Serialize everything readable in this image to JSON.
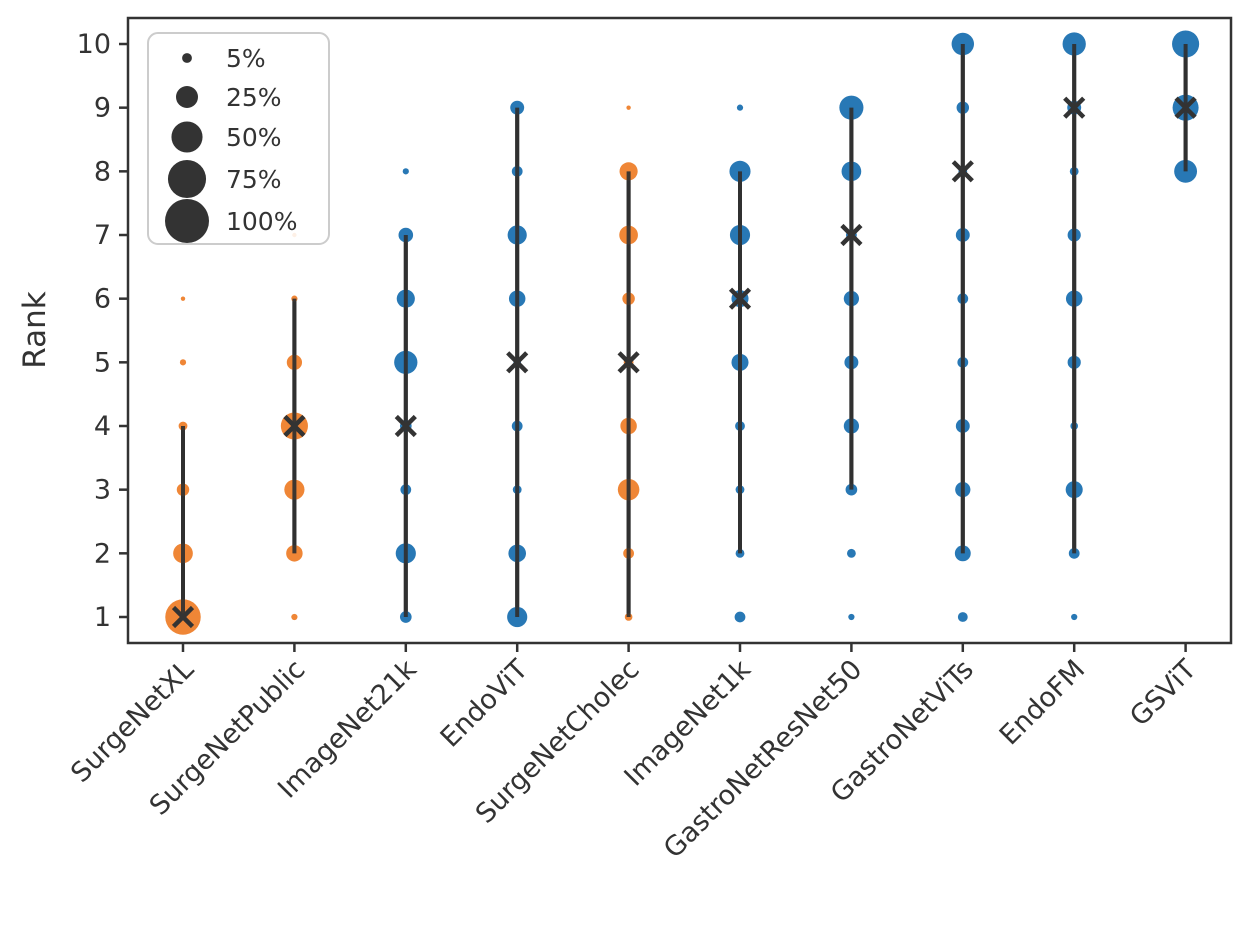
{
  "chart_data": {
    "type": "scatter",
    "title": "",
    "xlabel": "",
    "ylabel": "Rank",
    "ylim": [
      1,
      10
    ],
    "yticks": [
      1,
      2,
      3,
      4,
      5,
      6,
      7,
      8,
      9,
      10
    ],
    "grid": false,
    "legend": {
      "position": "upper left",
      "entries": [
        {
          "label": "5%",
          "percent": 5
        },
        {
          "label": "25%",
          "percent": 25
        },
        {
          "label": "50%",
          "percent": 50
        },
        {
          "label": "75%",
          "percent": 75
        },
        {
          "label": "100%",
          "percent": 100
        }
      ]
    },
    "encoding_note": "dot area = percentage of experiments achieving that rank; X = median rank; vertical line = rank range",
    "colors": {
      "surgenet_family": "#ef8636",
      "baseline": "#2878b5",
      "marker": "#333333",
      "line": "#303030"
    },
    "categories": [
      "SurgeNetXL",
      "SurgeNetPublic",
      "ImageNet21k",
      "EndoViT",
      "SurgeNetCholec",
      "ImageNet1k",
      "GastroNetResNet50",
      "GastroNetViTs",
      "EndoFM",
      "GSViT"
    ],
    "series": [
      {
        "name": "SurgeNetXL",
        "color": "#ef8636",
        "median_rank": 1,
        "line_range": [
          1,
          4
        ],
        "rank_percents": {
          "1": 65,
          "2": 20,
          "3": 8,
          "4": 4,
          "5": 2,
          "6": 1
        }
      },
      {
        "name": "SurgeNetPublic",
        "color": "#ef8636",
        "median_rank": 4,
        "line_range": [
          2,
          6
        ],
        "rank_percents": {
          "1": 2,
          "2": 14,
          "3": 21,
          "4": 38,
          "5": 12,
          "6": 2,
          "7": 1
        }
      },
      {
        "name": "ImageNet21k",
        "color": "#2878b5",
        "median_rank": 4,
        "line_range": [
          1,
          7
        ],
        "rank_percents": {
          "1": 7,
          "2": 21,
          "3": 6,
          "4": 7,
          "5": 28,
          "6": 17,
          "7": 11,
          "8": 2
        }
      },
      {
        "name": "EndoViT",
        "color": "#2878b5",
        "median_rank": 5,
        "line_range": [
          1,
          9
        ],
        "rank_percents": {
          "1": 21,
          "2": 16,
          "3": 4,
          "4": 6,
          "5": 3,
          "6": 14,
          "7": 19,
          "8": 6,
          "9": 10
        }
      },
      {
        "name": "SurgeNetCholec",
        "color": "#ef8636",
        "median_rank": 5,
        "line_range": [
          1,
          8
        ],
        "rank_percents": {
          "1": 3,
          "2": 6,
          "3": 24,
          "4": 14,
          "5": 5,
          "6": 8,
          "7": 18,
          "8": 17,
          "9": 1
        }
      },
      {
        "name": "ImageNet1k",
        "color": "#2878b5",
        "median_rank": 6,
        "line_range": [
          2,
          8
        ],
        "rank_percents": {
          "1": 6,
          "2": 4,
          "3": 4,
          "4": 5,
          "5": 15,
          "6": 15,
          "7": 21,
          "8": 23,
          "9": 2
        }
      },
      {
        "name": "GastroNetResNet50",
        "color": "#2878b5",
        "median_rank": 7,
        "line_range": [
          3,
          9
        ],
        "rank_percents": {
          "1": 2,
          "2": 4,
          "3": 7,
          "4": 12,
          "5": 10,
          "6": 12,
          "7": 6,
          "8": 20,
          "9": 30
        }
      },
      {
        "name": "GastroNetViTs",
        "color": "#2878b5",
        "median_rank": 8,
        "line_range": [
          2,
          10
        ],
        "rank_percents": {
          "1": 5,
          "2": 13,
          "3": 12,
          "4": 10,
          "5": 6,
          "6": 6,
          "7": 10,
          "8": 4,
          "9": 8,
          "10": 26
        }
      },
      {
        "name": "EndoFM",
        "color": "#2878b5",
        "median_rank": 9,
        "line_range": [
          2,
          10
        ],
        "rank_percents": {
          "1": 2,
          "2": 6,
          "3": 15,
          "4": 3,
          "5": 9,
          "6": 14,
          "7": 9,
          "8": 4,
          "9": 10,
          "10": 28
        }
      },
      {
        "name": "GSViT",
        "color": "#2878b5",
        "median_rank": 9,
        "line_range": [
          8,
          10
        ],
        "rank_percents": {
          "8": 27,
          "9": 35,
          "10": 38
        }
      }
    ]
  }
}
